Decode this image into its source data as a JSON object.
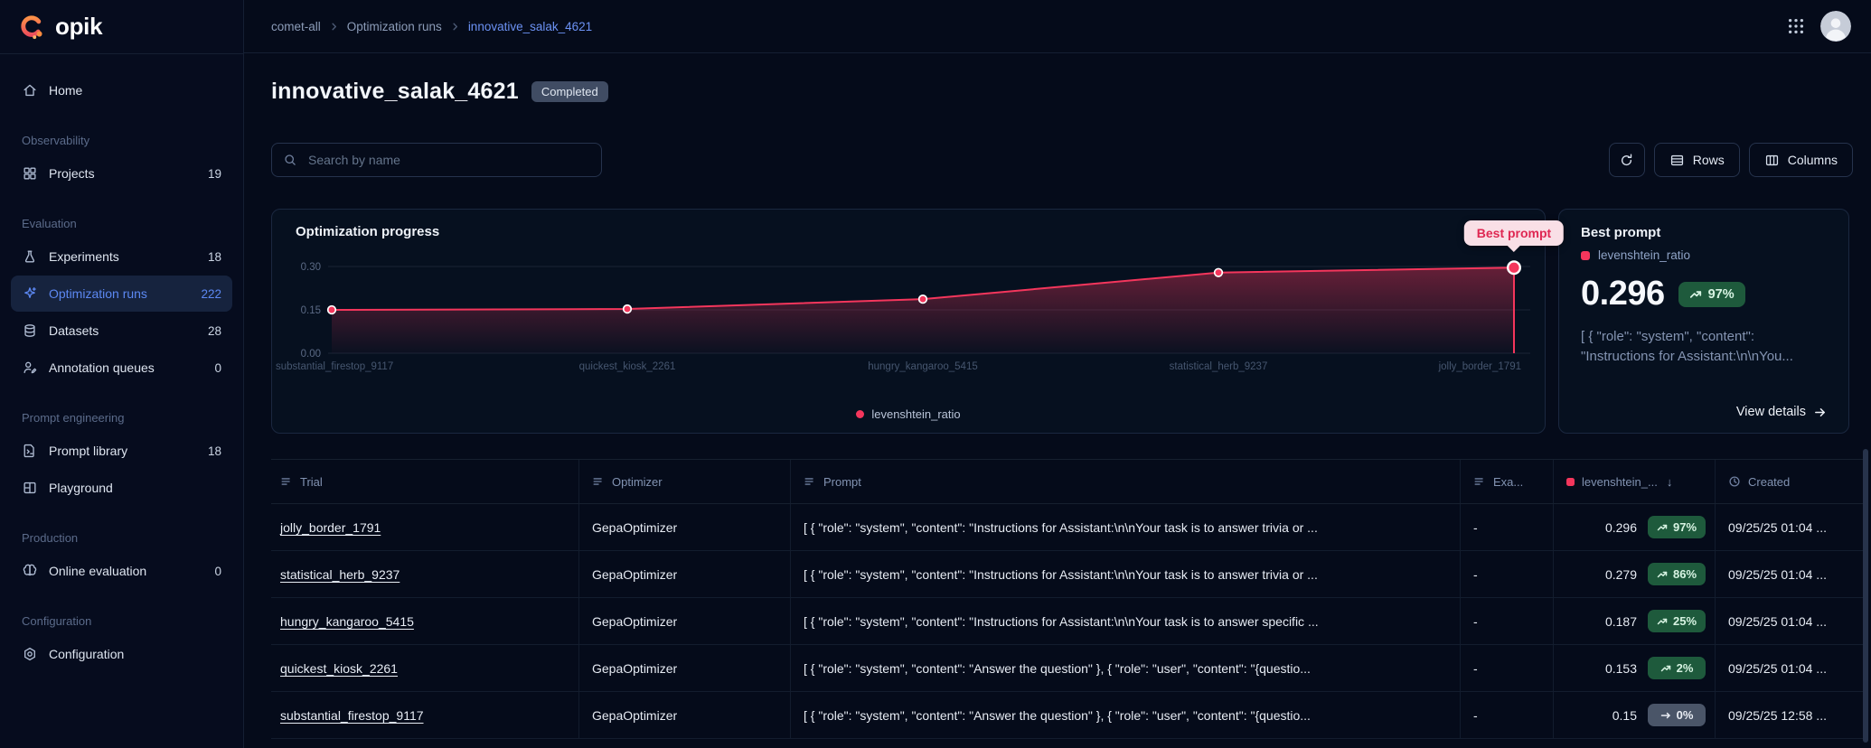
{
  "brand": {
    "logo_text": "opik"
  },
  "topbar": {
    "breadcrumb": [
      "comet-all",
      "Optimization runs",
      "innovative_salak_4621"
    ]
  },
  "sidebar": {
    "home": {
      "label": "Home",
      "icon": "home-icon",
      "count": ""
    },
    "sections": [
      {
        "title": "Observability",
        "items": [
          {
            "label": "Projects",
            "icon": "projects-icon",
            "count": "19"
          }
        ]
      },
      {
        "title": "Evaluation",
        "items": [
          {
            "label": "Experiments",
            "icon": "flask-icon",
            "count": "18"
          },
          {
            "label": "Optimization runs",
            "icon": "sparkles-icon",
            "count": "222",
            "active": true
          },
          {
            "label": "Datasets",
            "icon": "database-icon",
            "count": "28"
          },
          {
            "label": "Annotation queues",
            "icon": "user-pen-icon",
            "count": "0"
          }
        ]
      },
      {
        "title": "Prompt engineering",
        "items": [
          {
            "label": "Prompt library",
            "icon": "file-terminal-icon",
            "count": "18"
          },
          {
            "label": "Playground",
            "icon": "layout-icon",
            "count": ""
          }
        ]
      },
      {
        "title": "Production",
        "items": [
          {
            "label": "Online evaluation",
            "icon": "brain-icon",
            "count": "0"
          }
        ]
      },
      {
        "title": "Configuration",
        "items": [
          {
            "label": "Configuration",
            "icon": "gear-icon",
            "count": ""
          }
        ]
      }
    ]
  },
  "page": {
    "title": "innovative_salak_4621",
    "status_badge": "Completed"
  },
  "toolbar": {
    "search_placeholder": "Search by name",
    "rows_label": "Rows",
    "columns_label": "Columns"
  },
  "chart_data": {
    "type": "line",
    "title": "Optimization progress",
    "categories": [
      "substantial_firestop_9117",
      "quickest_kiosk_2261",
      "hungry_kangaroo_5415",
      "statistical_herb_9237",
      "jolly_border_1791"
    ],
    "series": [
      {
        "name": "levenshtein_ratio",
        "color": "#F4365C",
        "values": [
          0.15,
          0.153,
          0.187,
          0.279,
          0.296
        ]
      }
    ],
    "ylim": [
      0,
      0.3
    ],
    "yticks": [
      0,
      0.15,
      0.3
    ],
    "grid": true,
    "legend_position": "bottom",
    "annotation": {
      "label": "Best prompt",
      "category": "jolly_border_1791",
      "value": 0.296
    }
  },
  "best_prompt": {
    "title": "Best prompt",
    "metric_name": "levenshtein_ratio",
    "value": "0.296",
    "delta": "97%",
    "preview": "[ { \"role\": \"system\", \"content\": \"Instructions for Assistant:\\n\\nYou...",
    "link_label": "View details"
  },
  "table": {
    "columns": [
      {
        "label": "Trial",
        "icon": "text-icon"
      },
      {
        "label": "Optimizer",
        "icon": "text-icon"
      },
      {
        "label": "Prompt",
        "icon": "text-icon"
      },
      {
        "label": "Exa...",
        "icon": "text-icon"
      },
      {
        "label": "levenshtein_...",
        "icon": "metric-icon",
        "sort": "desc"
      },
      {
        "label": "Created",
        "icon": "clock-icon"
      }
    ],
    "rows": [
      {
        "trial": "jolly_border_1791",
        "optimizer": "GepaOptimizer",
        "prompt": "[ { \"role\": \"system\", \"content\": \"Instructions for Assistant:\\n\\nYour task is to answer trivia or ...",
        "examples": "-",
        "value": "0.296",
        "delta": "97%",
        "trend": "up",
        "created": "09/25/25 01:04 ..."
      },
      {
        "trial": "statistical_herb_9237",
        "optimizer": "GepaOptimizer",
        "prompt": "[ { \"role\": \"system\", \"content\": \"Instructions for Assistant:\\n\\nYour task is to answer trivia or ...",
        "examples": "-",
        "value": "0.279",
        "delta": "86%",
        "trend": "up",
        "created": "09/25/25 01:04 ..."
      },
      {
        "trial": "hungry_kangaroo_5415",
        "optimizer": "GepaOptimizer",
        "prompt": "[ { \"role\": \"system\", \"content\": \"Instructions for Assistant:\\n\\nYour task is to answer specific ...",
        "examples": "-",
        "value": "0.187",
        "delta": "25%",
        "trend": "up",
        "created": "09/25/25 01:04 ..."
      },
      {
        "trial": "quickest_kiosk_2261",
        "optimizer": "GepaOptimizer",
        "prompt": "[ { \"role\": \"system\", \"content\": \"Answer the question\" }, { \"role\": \"user\", \"content\": \"{questio...",
        "examples": "-",
        "value": "0.153",
        "delta": "2%",
        "trend": "up",
        "created": "09/25/25 01:04 ..."
      },
      {
        "trial": "substantial_firestop_9117",
        "optimizer": "GepaOptimizer",
        "prompt": "[ { \"role\": \"system\", \"content\": \"Answer the question\" }, { \"role\": \"user\", \"content\": \"{questio...",
        "examples": "-",
        "value": "0.15",
        "delta": "0%",
        "trend": "flat",
        "created": "09/25/25 12:58 ..."
      }
    ]
  }
}
